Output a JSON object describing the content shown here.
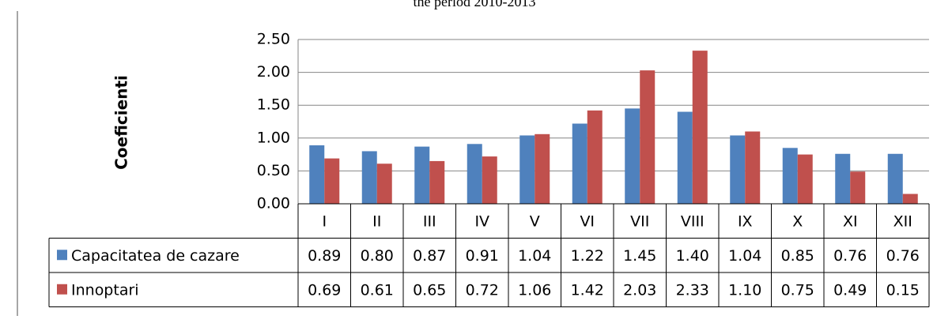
{
  "chart_data": {
    "type": "bar",
    "title": "the period 2010-2013",
    "y_axis_label": "Coeficienti",
    "categories": [
      "I",
      "II",
      "III",
      "IV",
      "V",
      "VI",
      "VII",
      "VIII",
      "IX",
      "X",
      "XI",
      "XII"
    ],
    "series": [
      {
        "name": "Capacitatea de cazare",
        "color": "#4f81bd",
        "values": [
          0.89,
          0.8,
          0.87,
          0.91,
          1.04,
          1.22,
          1.45,
          1.4,
          1.04,
          0.85,
          0.76,
          0.76
        ],
        "value_labels": [
          "0.89",
          "0.80",
          "0.87",
          "0.91",
          "1.04",
          "1.22",
          "1.45",
          "1.40",
          "1.04",
          "0.85",
          "0.76",
          "0.76"
        ]
      },
      {
        "name": "Innoptari",
        "color": "#c0504d",
        "values": [
          0.69,
          0.61,
          0.65,
          0.72,
          1.06,
          1.42,
          2.03,
          2.33,
          1.1,
          0.75,
          0.49,
          0.15
        ],
        "value_labels": [
          "0.69",
          "0.61",
          "0.65",
          "0.72",
          "1.06",
          "1.42",
          "2.03",
          "2.33",
          "1.10",
          "0.75",
          "0.49",
          "0.15"
        ]
      }
    ],
    "ylim": [
      0,
      2.5
    ],
    "yticks": [
      {
        "value": 0,
        "label": "0.00"
      },
      {
        "value": 0.5,
        "label": "0.50"
      },
      {
        "value": 1,
        "label": "1.00"
      },
      {
        "value": 1.5,
        "label": "1.50"
      },
      {
        "value": 2,
        "label": "2.00"
      },
      {
        "value": 2.5,
        "label": "2.50"
      }
    ],
    "grid": true,
    "data_table": true
  }
}
